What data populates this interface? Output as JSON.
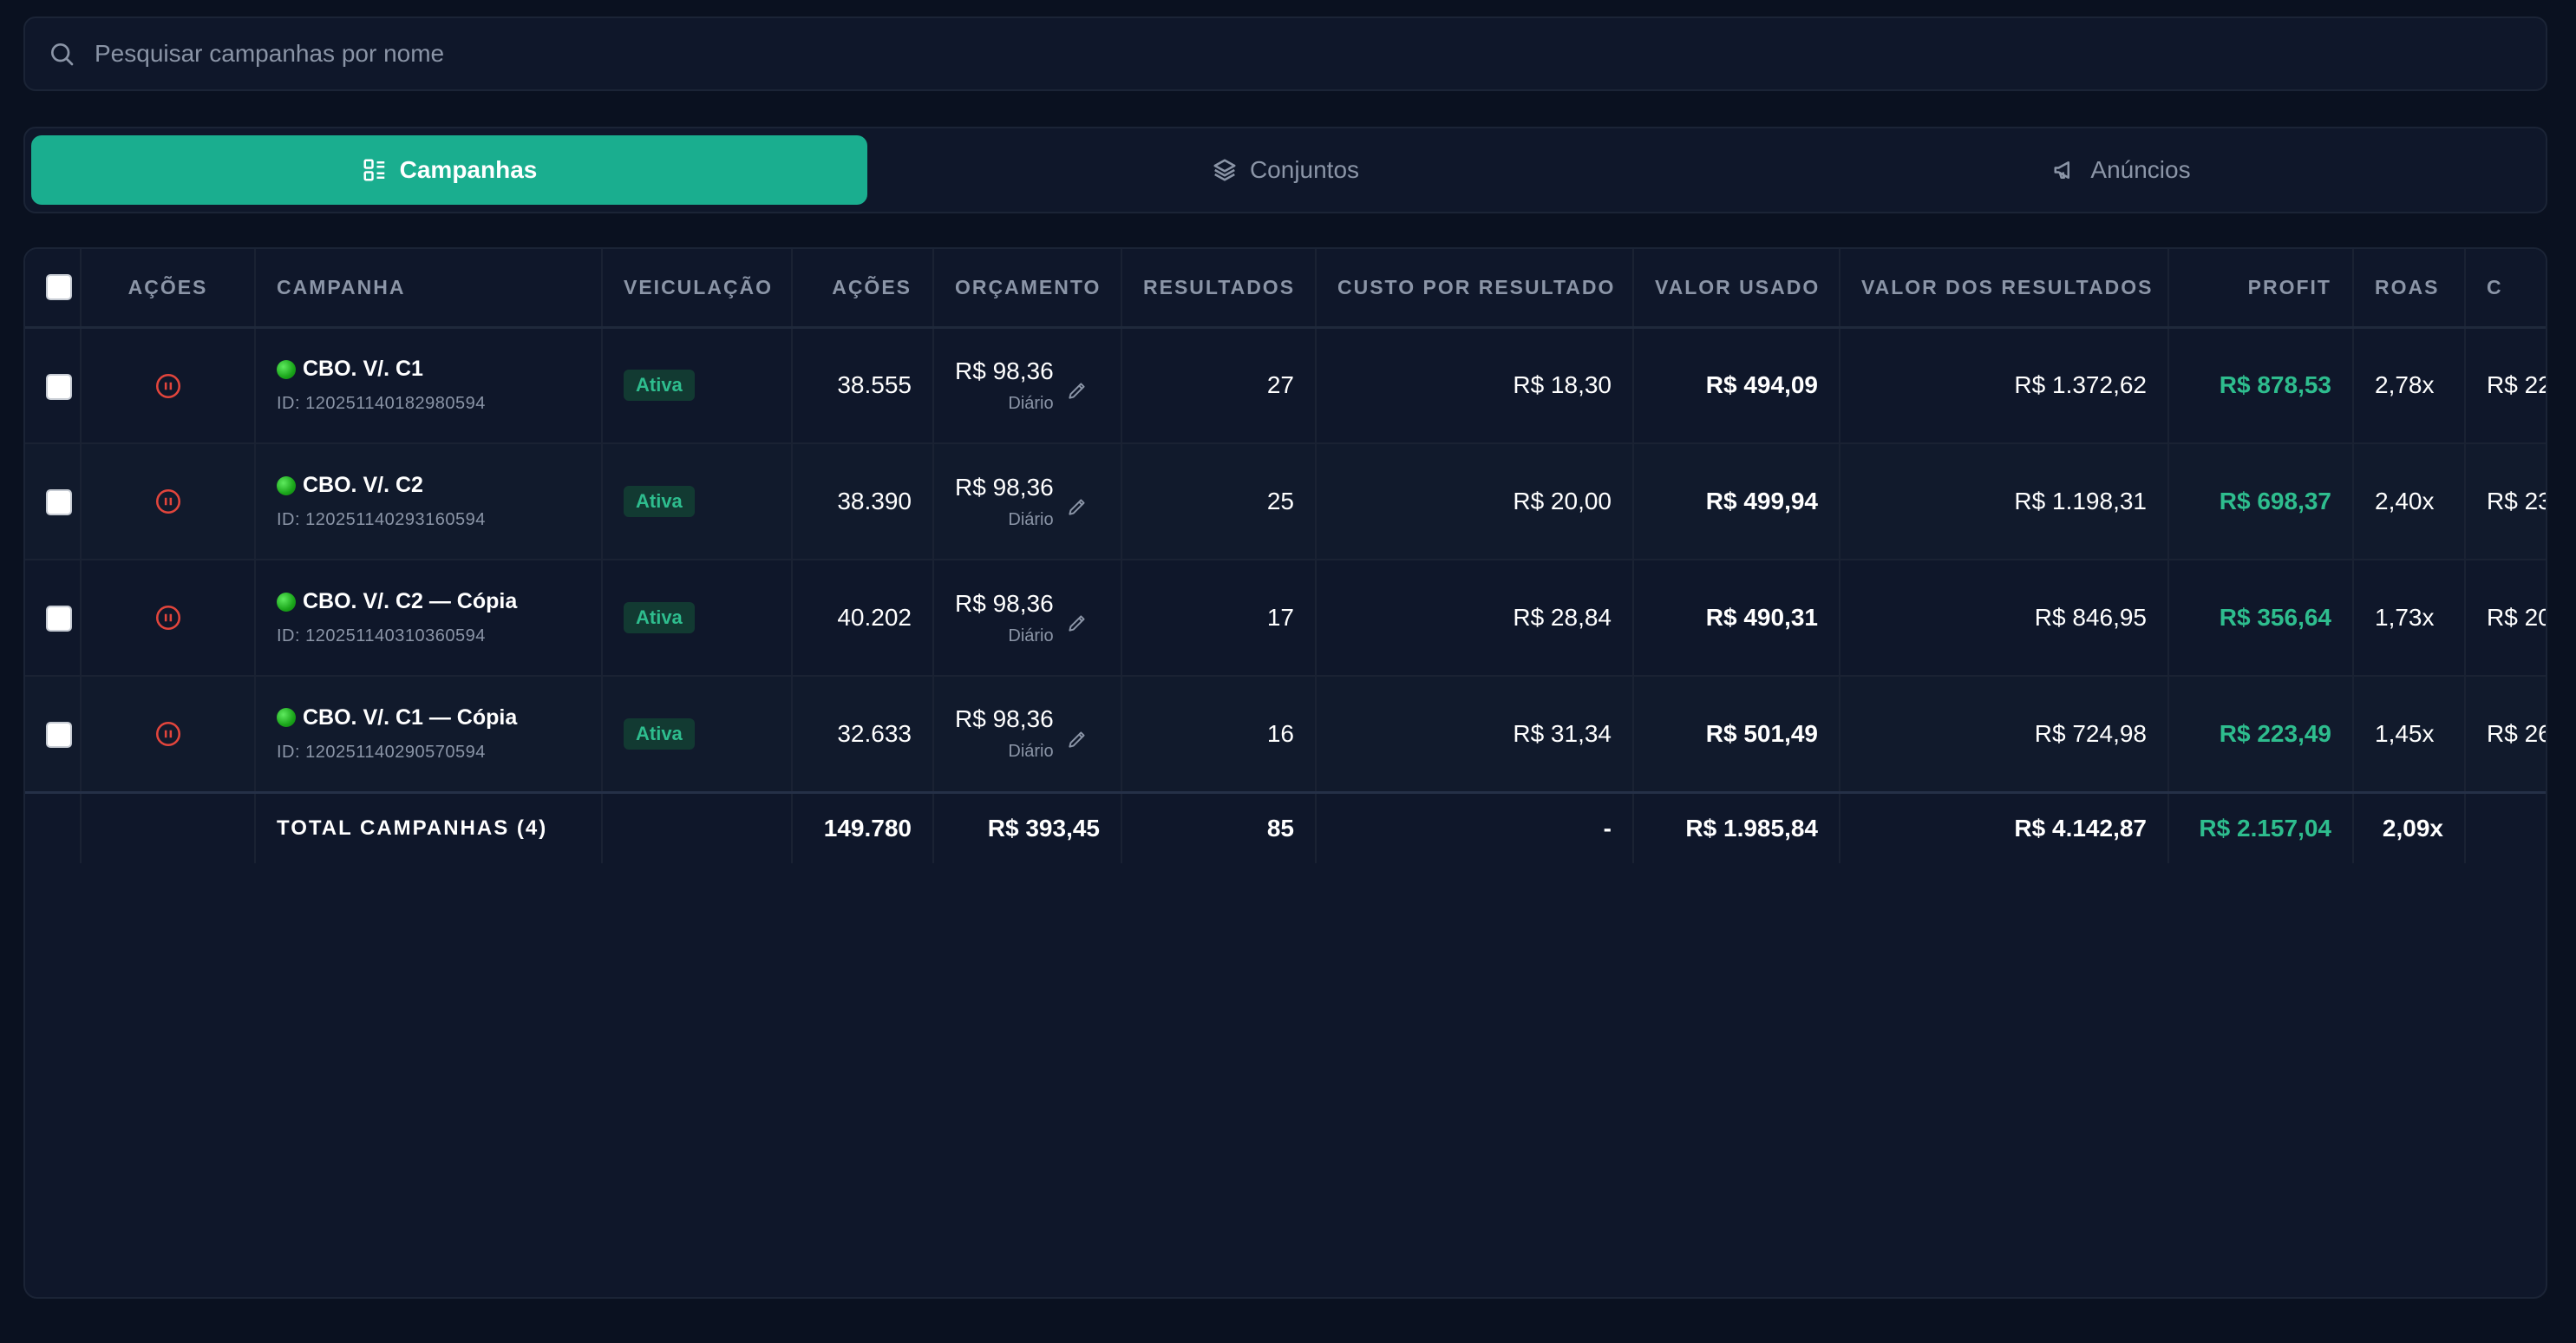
{
  "search": {
    "placeholder": "Pesquisar campanhas por nome",
    "icon": "search-icon"
  },
  "tabs": [
    {
      "label": "Campanhas",
      "icon": "list-icon",
      "active": true
    },
    {
      "label": "Conjuntos",
      "icon": "layers-icon",
      "active": false
    },
    {
      "label": "Anúncios",
      "icon": "megaphone-icon",
      "active": false
    }
  ],
  "colors": {
    "accent": "#1aae8f",
    "positive": "#2ebd8e",
    "pause": "#e2453c",
    "background": "#0a1120"
  },
  "table": {
    "headers": {
      "acoes_btn": "AÇÕES",
      "campanha": "CAMPANHA",
      "veiculacao": "VEICULAÇÃO",
      "acoes": "AÇÕES",
      "orcamento": "ORÇAMENTO",
      "resultados": "RESULTADOS",
      "custo": "CUSTO POR RESULTADO",
      "valor_usado": "VALOR USADO",
      "valor_resultados": "VALOR DOS RESULTADOS",
      "profit": "PROFIT",
      "roas": "ROAS",
      "extra": "C"
    },
    "rows": [
      {
        "name": "CBO. V/. C1",
        "id": "ID: 120251140182980594",
        "status": "Ativa",
        "acoes": "38.555",
        "budget": "R$ 98,36",
        "budget_period": "Diário",
        "resultados": "27",
        "custo": "R$ 18,30",
        "valor_usado": "R$ 494,09",
        "valor_resultados": "R$ 1.372,62",
        "profit": "R$ 878,53",
        "roas": "2,78x",
        "extra": "R$ 22"
      },
      {
        "name": "CBO. V/. C2",
        "id": "ID: 120251140293160594",
        "status": "Ativa",
        "acoes": "38.390",
        "budget": "R$ 98,36",
        "budget_period": "Diário",
        "resultados": "25",
        "custo": "R$ 20,00",
        "valor_usado": "R$ 499,94",
        "valor_resultados": "R$ 1.198,31",
        "profit": "R$ 698,37",
        "roas": "2,40x",
        "extra": "R$ 23"
      },
      {
        "name": "CBO. V/. C2 — Cópia",
        "id": "ID: 120251140310360594",
        "status": "Ativa",
        "acoes": "40.202",
        "budget": "R$ 98,36",
        "budget_period": "Diário",
        "resultados": "17",
        "custo": "R$ 28,84",
        "valor_usado": "R$ 490,31",
        "valor_resultados": "R$ 846,95",
        "profit": "R$ 356,64",
        "roas": "1,73x",
        "extra": "R$ 20"
      },
      {
        "name": "CBO. V/. C1 — Cópia",
        "id": "ID: 120251140290570594",
        "status": "Ativa",
        "acoes": "32.633",
        "budget": "R$ 98,36",
        "budget_period": "Diário",
        "resultados": "16",
        "custo": "R$ 31,34",
        "valor_usado": "R$ 501,49",
        "valor_resultados": "R$ 724,98",
        "profit": "R$ 223,49",
        "roas": "1,45x",
        "extra": "R$ 26"
      }
    ],
    "total": {
      "label": "TOTAL CAMPANHAS (4)",
      "acoes": "149.780",
      "budget": "R$ 393,45",
      "resultados": "85",
      "custo": "-",
      "valor_usado": "R$ 1.985,84",
      "valor_resultados": "R$ 4.142,87",
      "profit": "R$ 2.157,04",
      "roas": "2,09x"
    }
  }
}
